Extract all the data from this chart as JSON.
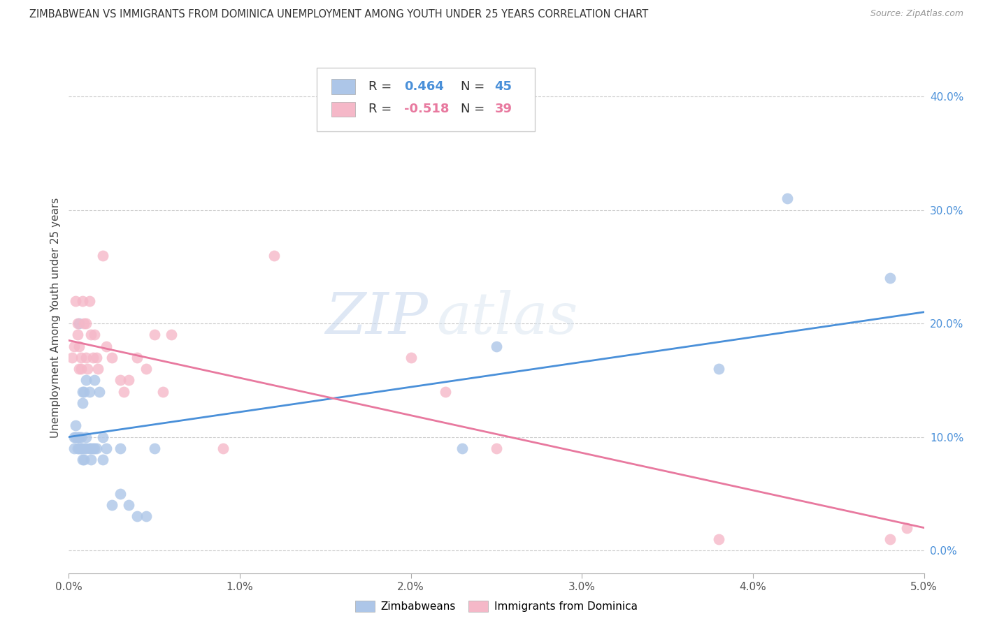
{
  "title": "ZIMBABWEAN VS IMMIGRANTS FROM DOMINICA UNEMPLOYMENT AMONG YOUTH UNDER 25 YEARS CORRELATION CHART",
  "source": "Source: ZipAtlas.com",
  "ylabel": "Unemployment Among Youth under 25 years",
  "xlim": [
    0.0,
    0.05
  ],
  "ylim": [
    -0.02,
    0.43
  ],
  "xticks": [
    0.0,
    0.01,
    0.02,
    0.03,
    0.04,
    0.05
  ],
  "yticks_right": [
    0.0,
    0.1,
    0.2,
    0.3,
    0.4
  ],
  "blue_color": "#adc6e8",
  "pink_color": "#f5b8c8",
  "blue_line_color": "#4a90d9",
  "pink_line_color": "#e8799f",
  "R_blue": 0.464,
  "N_blue": 45,
  "R_pink": -0.518,
  "N_pink": 39,
  "blue_scatter_x": [
    0.0003,
    0.0003,
    0.0004,
    0.0004,
    0.0005,
    0.0005,
    0.0006,
    0.0006,
    0.0006,
    0.0007,
    0.0007,
    0.0007,
    0.0008,
    0.0008,
    0.0008,
    0.0009,
    0.0009,
    0.0009,
    0.001,
    0.001,
    0.001,
    0.0012,
    0.0012,
    0.0013,
    0.0013,
    0.0014,
    0.0015,
    0.0015,
    0.0016,
    0.0018,
    0.002,
    0.002,
    0.0022,
    0.0025,
    0.003,
    0.003,
    0.0035,
    0.004,
    0.0045,
    0.005,
    0.023,
    0.025,
    0.038,
    0.042,
    0.048
  ],
  "blue_scatter_y": [
    0.1,
    0.09,
    0.11,
    0.1,
    0.1,
    0.09,
    0.2,
    0.1,
    0.09,
    0.1,
    0.09,
    0.09,
    0.14,
    0.13,
    0.08,
    0.14,
    0.09,
    0.08,
    0.15,
    0.1,
    0.09,
    0.14,
    0.09,
    0.08,
    0.09,
    0.09,
    0.15,
    0.09,
    0.09,
    0.14,
    0.1,
    0.08,
    0.09,
    0.04,
    0.09,
    0.05,
    0.04,
    0.03,
    0.03,
    0.09,
    0.09,
    0.18,
    0.16,
    0.31,
    0.24
  ],
  "pink_scatter_x": [
    0.0002,
    0.0003,
    0.0004,
    0.0005,
    0.0005,
    0.0006,
    0.0006,
    0.0007,
    0.0007,
    0.0008,
    0.0009,
    0.001,
    0.001,
    0.0011,
    0.0012,
    0.0013,
    0.0014,
    0.0015,
    0.0016,
    0.0017,
    0.002,
    0.0022,
    0.0025,
    0.003,
    0.0032,
    0.0035,
    0.004,
    0.0045,
    0.005,
    0.0055,
    0.006,
    0.009,
    0.012,
    0.02,
    0.022,
    0.025,
    0.038,
    0.048,
    0.049
  ],
  "pink_scatter_y": [
    0.17,
    0.18,
    0.22,
    0.2,
    0.19,
    0.18,
    0.16,
    0.16,
    0.17,
    0.22,
    0.2,
    0.2,
    0.17,
    0.16,
    0.22,
    0.19,
    0.17,
    0.19,
    0.17,
    0.16,
    0.26,
    0.18,
    0.17,
    0.15,
    0.14,
    0.15,
    0.17,
    0.16,
    0.19,
    0.14,
    0.19,
    0.09,
    0.26,
    0.17,
    0.14,
    0.09,
    0.01,
    0.01,
    0.02
  ],
  "watermark_zip": "ZIP",
  "watermark_atlas": "atlas",
  "blue_trend_x": [
    0.0,
    0.05
  ],
  "blue_trend_y": [
    0.1,
    0.21
  ],
  "pink_trend_x": [
    0.0,
    0.05
  ],
  "pink_trend_y": [
    0.185,
    0.02
  ]
}
